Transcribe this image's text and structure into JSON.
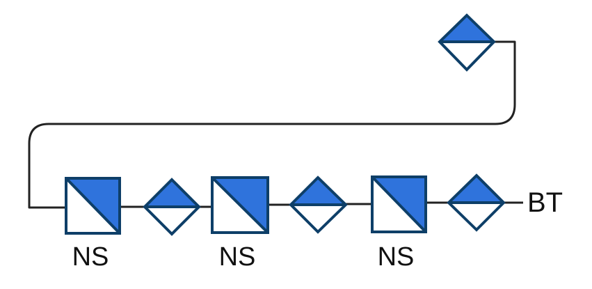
{
  "colors": {
    "fill": "#2f73dc",
    "stroke": "#0e3f68",
    "wire": "#222222",
    "background": "#ffffff"
  },
  "diagram": {
    "end_label": "BT",
    "components": [
      {
        "kind": "diamond",
        "label": ""
      },
      {
        "kind": "square",
        "label": "NS"
      },
      {
        "kind": "diamond",
        "label": ""
      },
      {
        "kind": "square",
        "label": "NS"
      },
      {
        "kind": "diamond",
        "label": ""
      },
      {
        "kind": "square",
        "label": "NS"
      },
      {
        "kind": "diamond",
        "label": ""
      }
    ]
  }
}
